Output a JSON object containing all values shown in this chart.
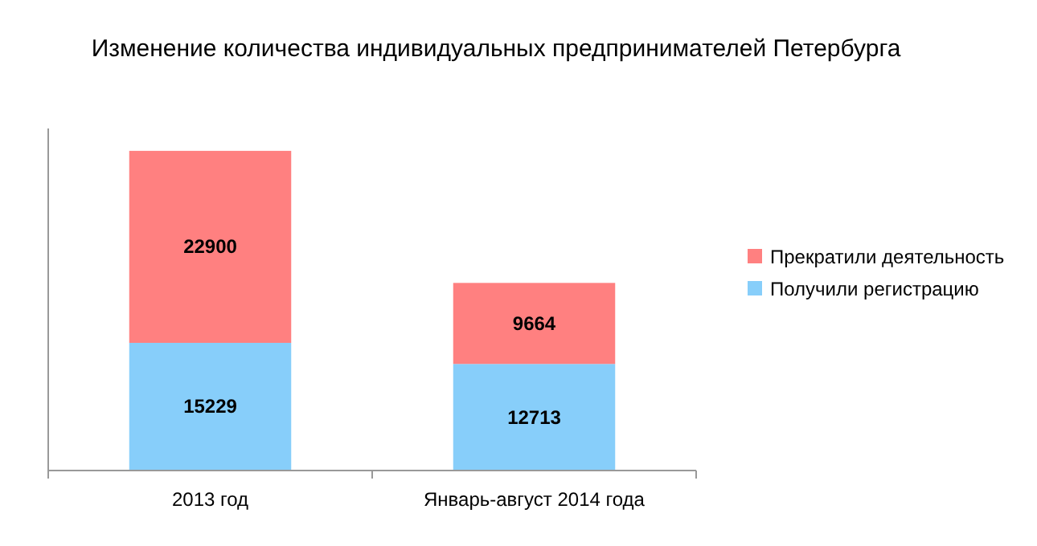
{
  "chart_data": {
    "type": "bar",
    "title": "Изменение количества индивидуальных предпринимателей Петербурга",
    "categories": [
      "2013 год",
      "Январь-август 2014 года"
    ],
    "stacked": true,
    "data_labels": true,
    "legend": "right",
    "grid": false,
    "series": [
      {
        "name": "Получили регистрацию",
        "color": "#87cefa",
        "values": [
          15229,
          12713
        ]
      },
      {
        "name": "Прекратили деятельность",
        "color": "#ff8080",
        "values": [
          22900,
          9664
        ]
      }
    ]
  }
}
